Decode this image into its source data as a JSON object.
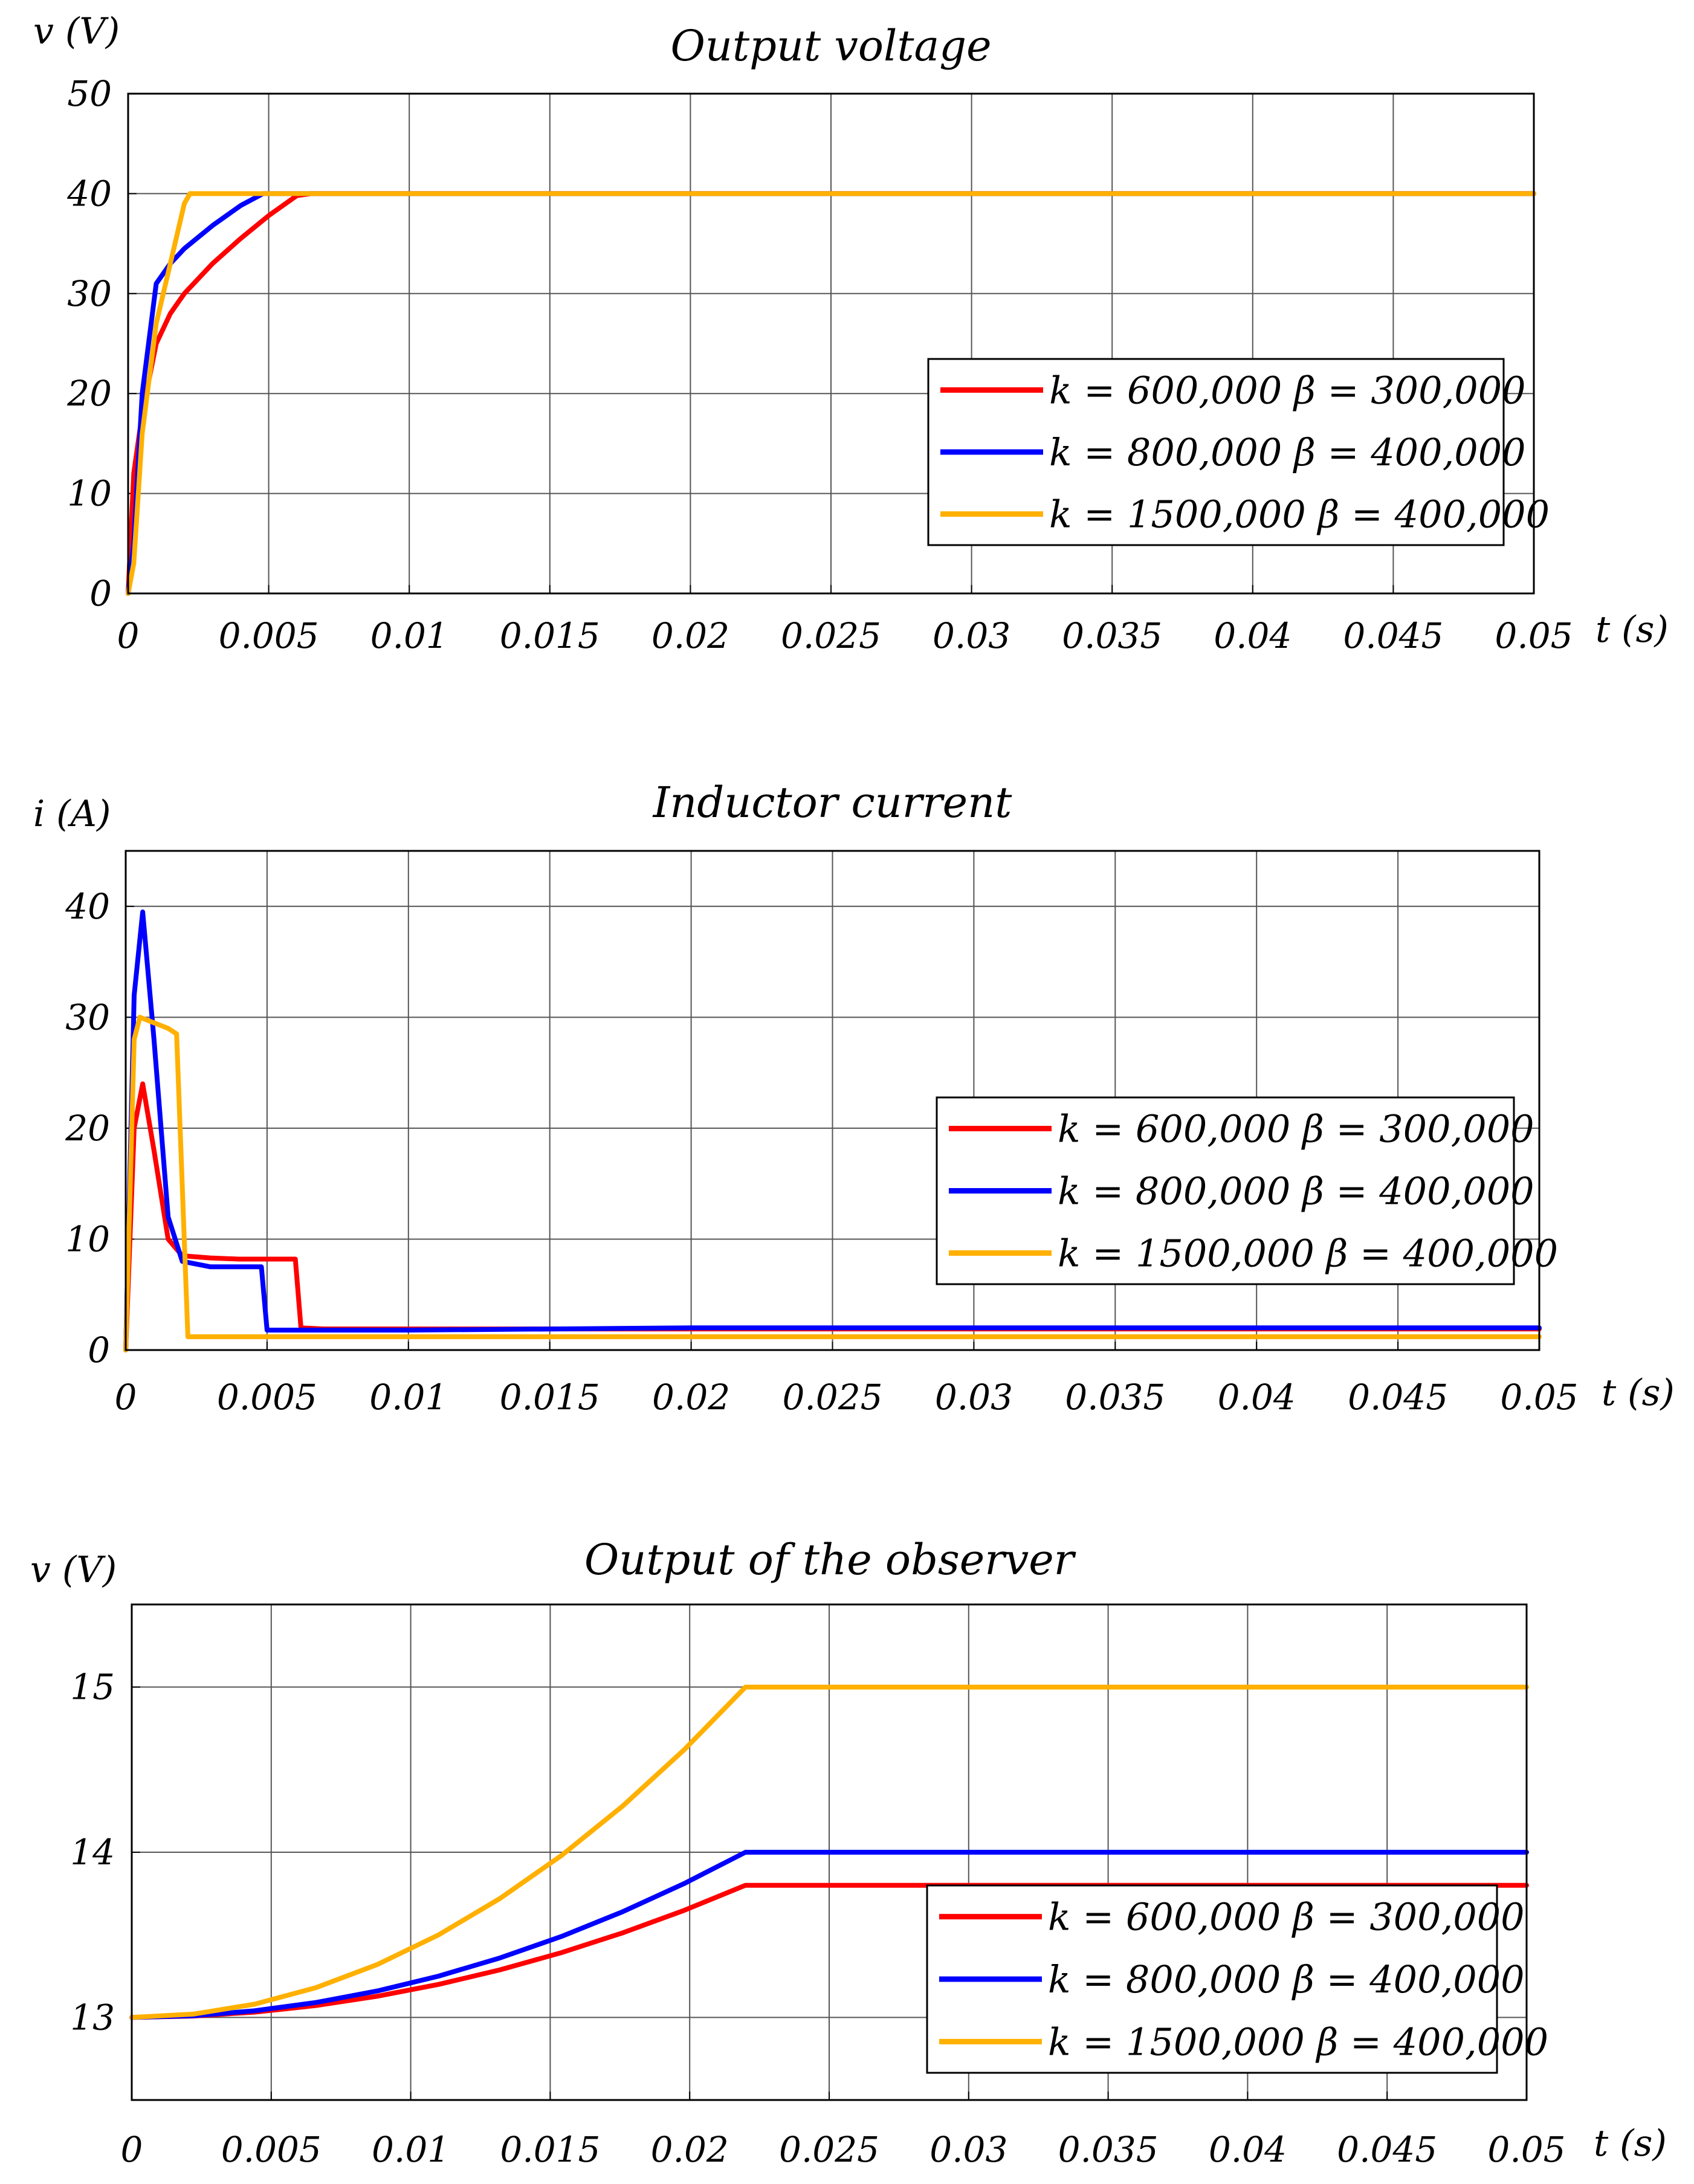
{
  "chart_data": [
    {
      "type": "line",
      "title": "Output    voltage",
      "ylabel": "v (V)",
      "xlabel": "t (s)",
      "xlim": [
        0,
        0.05
      ],
      "ylim": [
        0,
        50
      ],
      "xticks": [
        0,
        0.005,
        0.01,
        0.015,
        0.02,
        0.025,
        0.03,
        0.035,
        0.04,
        0.045,
        0.05
      ],
      "yticks": [
        0,
        10,
        20,
        30,
        40,
        50
      ],
      "xtick_labels": [
        "0",
        "0.005",
        "0.01",
        "0.015",
        "0.02",
        "0.025",
        "0.03",
        "0.035",
        "0.04",
        "0.045",
        "0.05"
      ],
      "ytick_labels": [
        "0",
        "10",
        "20",
        "30",
        "40",
        "50"
      ],
      "grid": true,
      "legend_position": "center-right",
      "series": [
        {
          "name": "k = 600,000     β = 300,000",
          "color": "#ff0000",
          "x": [
            0,
            0.0002,
            0.0005,
            0.001,
            0.0015,
            0.002,
            0.003,
            0.004,
            0.005,
            0.006,
            0.0065,
            0.01,
            0.02,
            0.03,
            0.04,
            0.05
          ],
          "y": [
            0,
            12,
            18,
            25,
            28,
            30,
            33,
            35.5,
            37.8,
            39.8,
            40,
            40,
            40,
            40,
            40,
            40
          ]
        },
        {
          "name": "k = 800,000     β = 400,000",
          "color": "#0000ff",
          "x": [
            0,
            0.0002,
            0.0005,
            0.001,
            0.0015,
            0.002,
            0.003,
            0.004,
            0.0048,
            0.01,
            0.02,
            0.03,
            0.04,
            0.05
          ],
          "y": [
            0,
            5,
            20,
            31,
            33,
            34.5,
            36.8,
            38.8,
            40,
            40,
            40,
            40,
            40,
            40
          ]
        },
        {
          "name": "k = 1500,000  β = 400,000",
          "color": "#ffb000",
          "x": [
            0,
            0.0002,
            0.0005,
            0.001,
            0.0015,
            0.002,
            0.0022,
            0.01,
            0.02,
            0.03,
            0.04,
            0.05
          ],
          "y": [
            0,
            3,
            16,
            27,
            33,
            39,
            40,
            40,
            40,
            40,
            40,
            40
          ]
        }
      ]
    },
    {
      "type": "line",
      "title": "Inductor    current",
      "ylabel": "i (A)",
      "xlabel": "t (s)",
      "xlim": [
        0,
        0.05
      ],
      "ylim": [
        0,
        45
      ],
      "xticks": [
        0,
        0.005,
        0.01,
        0.015,
        0.02,
        0.025,
        0.03,
        0.035,
        0.04,
        0.045,
        0.05
      ],
      "yticks": [
        0,
        10,
        20,
        30,
        40
      ],
      "xtick_labels": [
        "0",
        "0.005",
        "0.01",
        "0.015",
        "0.02",
        "0.025",
        "0.03",
        "0.035",
        "0.04",
        "0.045",
        "0.05"
      ],
      "ytick_labels": [
        "0",
        "10",
        "20",
        "30",
        "40"
      ],
      "grid": true,
      "legend_position": "center-right",
      "series": [
        {
          "name": "k = 600,000     β = 300,000",
          "color": "#ff0000",
          "x": [
            0,
            0.0003,
            0.0006,
            0.001,
            0.0015,
            0.002,
            0.003,
            0.004,
            0.005,
            0.006,
            0.0062,
            0.007,
            0.01,
            0.02,
            0.03,
            0.04,
            0.05
          ],
          "y": [
            0,
            20,
            24,
            18,
            10,
            8.5,
            8.3,
            8.2,
            8.2,
            8.2,
            2,
            1.9,
            1.9,
            1.9,
            1.9,
            1.9,
            1.9
          ]
        },
        {
          "name": "k = 800,000     β = 400,000",
          "color": "#0000ff",
          "x": [
            0,
            0.0003,
            0.0006,
            0.001,
            0.0015,
            0.002,
            0.003,
            0.004,
            0.0048,
            0.005,
            0.007,
            0.01,
            0.02,
            0.03,
            0.04,
            0.05
          ],
          "y": [
            0,
            32,
            39.5,
            28,
            12,
            8,
            7.5,
            7.5,
            7.5,
            1.8,
            1.8,
            1.8,
            2,
            2,
            2,
            2
          ]
        },
        {
          "name": "k = 1500,000  β = 400,000",
          "color": "#ffb000",
          "x": [
            0,
            0.0003,
            0.0005,
            0.001,
            0.0015,
            0.0018,
            0.0022,
            0.003,
            0.005,
            0.01,
            0.02,
            0.03,
            0.04,
            0.05
          ],
          "y": [
            0,
            28,
            30,
            29.5,
            29,
            28.5,
            1.2,
            1.2,
            1.2,
            1.2,
            1.2,
            1.2,
            1.2,
            1.2
          ]
        }
      ]
    },
    {
      "type": "line",
      "title": "Output    of    the    observer",
      "ylabel": "v (V)",
      "xlabel": "t (s)",
      "xlim": [
        0,
        0.05
      ],
      "ylim": [
        12.5,
        15.5
      ],
      "xticks": [
        0,
        0.005,
        0.01,
        0.015,
        0.02,
        0.025,
        0.03,
        0.035,
        0.04,
        0.045,
        0.05
      ],
      "yticks": [
        13,
        14,
        15
      ],
      "xtick_labels": [
        "0",
        "0.005",
        "0.01",
        "0.015",
        "0.02",
        "0.025",
        "0.03",
        "0.035",
        "0.04",
        "0.045",
        "0.05"
      ],
      "ytick_labels": [
        "13",
        "14",
        "15"
      ],
      "grid": true,
      "legend_position": "bottom-right",
      "series": [
        {
          "name": "k = 600,000     β = 300,000",
          "color": "#ff0000",
          "x": [
            0,
            0.0022,
            0.0044,
            0.0066,
            0.0088,
            0.011,
            0.0132,
            0.0154,
            0.0176,
            0.0198,
            0.022,
            0.03,
            0.04,
            0.05
          ],
          "y": [
            13,
            13.008,
            13.032,
            13.072,
            13.128,
            13.2,
            13.288,
            13.392,
            13.512,
            13.648,
            13.8,
            13.8,
            13.8,
            13.8
          ]
        },
        {
          "name": "k = 800,000     β = 400,000",
          "color": "#0000ff",
          "x": [
            0,
            0.0022,
            0.0044,
            0.0066,
            0.0088,
            0.011,
            0.0132,
            0.0154,
            0.0176,
            0.0198,
            0.022,
            0.03,
            0.04,
            0.05
          ],
          "y": [
            13,
            13.01,
            13.04,
            13.09,
            13.16,
            13.25,
            13.36,
            13.49,
            13.64,
            13.81,
            14,
            14,
            14,
            14
          ]
        },
        {
          "name": "k = 1500,000  β = 400,000",
          "color": "#ffb000",
          "x": [
            0,
            0.0022,
            0.0044,
            0.0066,
            0.0088,
            0.011,
            0.0132,
            0.0154,
            0.0176,
            0.0198,
            0.022,
            0.03,
            0.04,
            0.05
          ],
          "y": [
            13,
            13.02,
            13.08,
            13.18,
            13.32,
            13.5,
            13.72,
            13.98,
            14.28,
            14.62,
            15,
            15,
            15,
            15
          ]
        }
      ]
    }
  ]
}
